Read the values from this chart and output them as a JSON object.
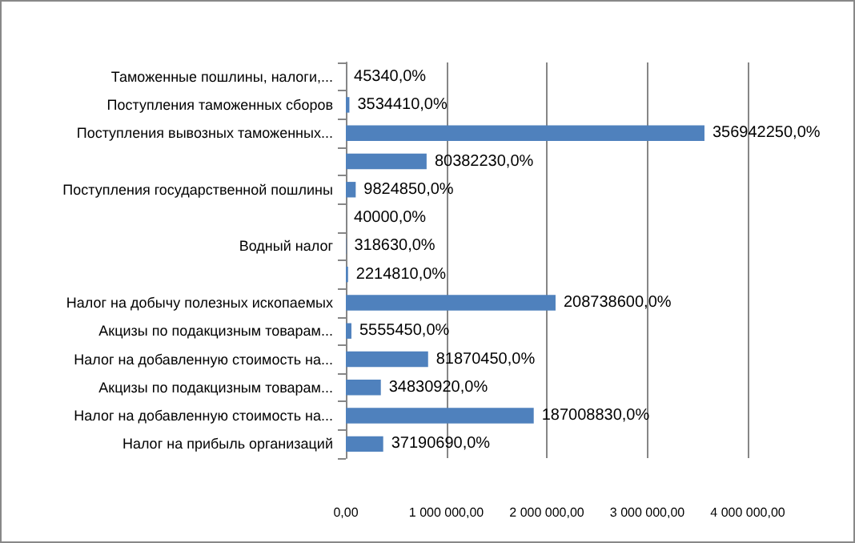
{
  "chart_data": {
    "type": "bar",
    "orientation": "horizontal",
    "categories": [
      "Таможенные пошлины, налоги,...",
      "Поступления таможенных сборов",
      "Поступления вывозных таможенных...",
      null,
      "Поступления государственной пошлины",
      null,
      "Водный налог",
      null,
      "Налог на добычу полезных ископаемых",
      "Акцизы по подакцизным товарам...",
      "Налог на добавленную стоимость на...",
      "Акцизы по подакцизным товарам...",
      "Налог на добавленную стоимость на...",
      "Налог на прибыль организаций"
    ],
    "values": [
      453.4,
      35344.1,
      3569422.5,
      803822.3,
      98248.5,
      400,
      3186.3,
      22148.1,
      2087386,
      55554.5,
      818704.5,
      348309.2,
      1870088.3,
      371906.9
    ],
    "value_labels": [
      "45340,0%",
      "3534410,0%",
      "356942250,0%",
      "80382230,0%",
      "9824850,0%",
      "40000,0%",
      "318630,0%",
      "2214810,0%",
      "208738600,0%",
      "5555450,0%",
      "81870450,0%",
      "34830920,0%",
      "187008830,0%",
      "37190690,0%"
    ],
    "color": "#4f81bd",
    "xlim": [
      0,
      4000000
    ],
    "xticks": [
      {
        "value": 0,
        "label": "0,00"
      },
      {
        "value": 1000000,
        "label": "1 000 000,00"
      },
      {
        "value": 2000000,
        "label": "2 000 000,00"
      },
      {
        "value": 3000000,
        "label": "3 000 000,00"
      },
      {
        "value": 4000000,
        "label": "4 000 000,00"
      }
    ],
    "grid": "x"
  }
}
